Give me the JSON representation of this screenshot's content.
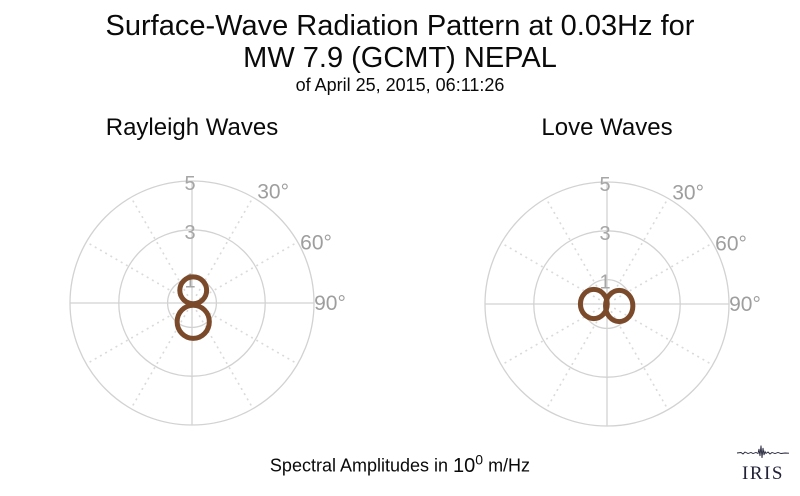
{
  "header": {
    "title_line1": "Surface-Wave Radiation Pattern at 0.03Hz for",
    "title_line2": "MW 7.9 (GCMT) NEPAL",
    "subtitle": "of April 25, 2015, 06:11:26"
  },
  "caption": {
    "prefix": "Spectral Amplitudes in ",
    "base": "10",
    "exponent": "0",
    "suffix": " m/Hz"
  },
  "logo": {
    "text": "IRIS",
    "color": "#232338"
  },
  "colors": {
    "grid": "#d2d2d2",
    "grid_dotted": "#dadada",
    "tick_label": "#a6a6a6",
    "angle_label": "#9e9e9e",
    "pattern": "#7a4a2b"
  },
  "chart_data": [
    {
      "type": "line",
      "subtype": "polar-radiation-pattern",
      "title": "Rayleigh Waves",
      "theta_zero": "top",
      "theta_direction": "clockwise",
      "r_max": 5,
      "r_ticks": [
        1,
        3,
        5
      ],
      "spoke_step_deg": 30,
      "angle_tick_labels": [
        {
          "deg": 30,
          "label": "30°"
        },
        {
          "deg": 60,
          "label": "60°"
        },
        {
          "deg": 90,
          "label": "90°"
        }
      ],
      "series": [
        {
          "name": "rayleigh-radiation-pattern",
          "color": "#7a4a2b",
          "shape": "vertical figure-eight, two lobes along N-S axis",
          "lobe_peak_azimuths_deg": [
            0,
            180
          ],
          "lobe_peak_amplitudes": [
            1.1,
            1.45
          ],
          "lobes": [
            {
              "cx": 0.05,
              "cy": 0.52,
              "rx": 0.55,
              "ry": 0.55
            },
            {
              "cx": 0.05,
              "cy": -0.77,
              "rx": 0.66,
              "ry": 0.68
            }
          ]
        }
      ]
    },
    {
      "type": "line",
      "subtype": "polar-radiation-pattern",
      "title": "Love Waves",
      "theta_zero": "top",
      "theta_direction": "clockwise",
      "r_max": 5,
      "r_ticks": [
        1,
        3,
        5
      ],
      "spoke_step_deg": 30,
      "angle_tick_labels": [
        {
          "deg": 30,
          "label": "30°"
        },
        {
          "deg": 60,
          "label": "60°"
        },
        {
          "deg": 90,
          "label": "90°"
        }
      ],
      "series": [
        {
          "name": "love-radiation-pattern",
          "color": "#7a4a2b",
          "shape": "horizontal figure-eight, two lobes along E-W axis",
          "lobe_peak_azimuths_deg": [
            90,
            270
          ],
          "lobe_peak_amplitudes": [
            1.15,
            1.2
          ],
          "lobes": [
            {
              "cx": -0.54,
              "cy": 0.0,
              "rx": 0.55,
              "ry": 0.6
            },
            {
              "cx": 0.5,
              "cy": -0.08,
              "rx": 0.56,
              "ry": 0.64
            }
          ]
        }
      ]
    }
  ]
}
